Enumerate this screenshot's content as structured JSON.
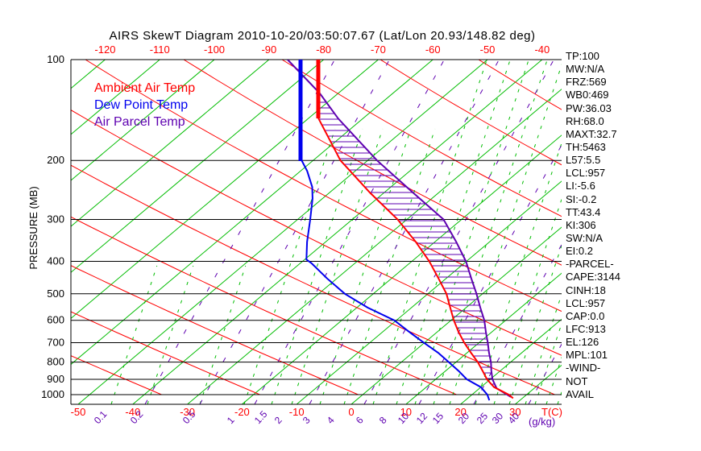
{
  "title": "AIRS SkewT Diagram 2010-10-20/03:50:07.67 (Lat/Lon 20.93/148.82 deg)",
  "colors": {
    "ambient": "#ff0000",
    "dewpoint": "#0000ee",
    "parcel": "#5e00b0",
    "isotherm_green": "#00bc00",
    "frame_black": "#000000",
    "background": "#ffffff"
  },
  "legend": {
    "ambient_label": "Ambient Air Temp",
    "dewpoint_label": "Dew Point Temp",
    "parcel_label": "Air Parcel Temp"
  },
  "axes": {
    "pressure_axis_label": "PRESSURE (MB)",
    "pressure_ticks": [
      100,
      200,
      300,
      400,
      500,
      600,
      700,
      800,
      900,
      1000
    ],
    "top_temp_ticks": [
      -120,
      -110,
      -100,
      -90,
      -80,
      -70,
      -60,
      -50,
      -40
    ],
    "bottom_temp_ticks": [
      -50,
      -40,
      -30,
      -20,
      -10,
      0,
      10,
      20,
      30
    ],
    "temp_unit_label": "T(C)",
    "mixing_unit_label": "(g/kg)",
    "mixing_ratio_ticks": [
      0.1,
      0.2,
      0.5,
      1,
      1.5,
      2,
      3,
      4,
      6,
      8,
      10,
      12,
      15,
      20,
      25,
      30,
      40
    ]
  },
  "stats": [
    "TP:100",
    "MW:N/A",
    "FRZ:569",
    "WB0:469",
    "PW:36.03",
    "RH:68.0",
    "MAXT:32.7",
    "TH:5463",
    "L57:5.5",
    "LCL:957",
    "LI:-5.6",
    "SI:-0.2",
    "TT:43.4",
    "KI:306",
    "SW:N/A",
    "EI:0.2",
    "-PARCEL-",
    "CAPE:3144",
    "CINH:18",
    "LCL:957",
    "CAP:0.0",
    "LFC:913",
    "EL:126",
    "MPL:101",
    "-WIND-",
    "NOT",
    "AVAIL"
  ],
  "chart_data": {
    "type": "line",
    "subtype": "skewt-logp",
    "title": "AIRS SkewT Diagram 2010-10-20/03:50:07.67 (Lat/Lon 20.93/148.82 deg)",
    "xlabel": "T(C)",
    "ylabel": "PRESSURE (MB)",
    "pressure_range": [
      100,
      1050
    ],
    "bottom_temp_range": [
      -50,
      38
    ],
    "grid": "skewt (isotherms, dry adiabats, moist adiabats, mixing-ratio lines)",
    "legend_position": "upper-left inside plot",
    "cape_hatch_between": [
      "Ambient Air Temp",
      "Air Parcel Temp"
    ],
    "series": [
      {
        "name": "Ambient Air Temp",
        "color_key": "ambient",
        "points_p_t": [
          [
            100,
            -80.9
          ],
          [
            150,
            -68.1
          ],
          [
            200,
            -55.0
          ],
          [
            250,
            -42.5
          ],
          [
            300,
            -31.7
          ],
          [
            350,
            -23.5
          ],
          [
            400,
            -16.8
          ],
          [
            450,
            -11.4
          ],
          [
            500,
            -6.6
          ],
          [
            550,
            -2.9
          ],
          [
            600,
            0.5
          ],
          [
            650,
            3.9
          ],
          [
            700,
            7.3
          ],
          [
            750,
            10.7
          ],
          [
            800,
            14.0
          ],
          [
            850,
            16.8
          ],
          [
            900,
            19.4
          ],
          [
            950,
            22.4
          ],
          [
            1000,
            26.7
          ],
          [
            1025,
            28.3
          ]
        ]
      },
      {
        "name": "Dew Point Temp",
        "color_key": "dewpoint",
        "points_p_t": [
          [
            100,
            -84.2
          ],
          [
            200,
            -62.1
          ],
          [
            215,
            -58.8
          ],
          [
            240,
            -54.4
          ],
          [
            260,
            -51.8
          ],
          [
            300,
            -47.7
          ],
          [
            350,
            -43.4
          ],
          [
            395,
            -39.7
          ],
          [
            405,
            -38.0
          ],
          [
            450,
            -31.8
          ],
          [
            500,
            -25.2
          ],
          [
            550,
            -18.0
          ],
          [
            600,
            -10.4
          ],
          [
            650,
            -5.1
          ],
          [
            700,
            -0.1
          ],
          [
            750,
            4.7
          ],
          [
            800,
            8.7
          ],
          [
            850,
            12.4
          ],
          [
            900,
            15.7
          ],
          [
            950,
            20.0
          ],
          [
            1000,
            22.8
          ],
          [
            1040,
            24.4
          ]
        ]
      },
      {
        "name": "Air Parcel Temp",
        "color_key": "parcel",
        "points_p_t": [
          [
            100,
            -86.6
          ],
          [
            126,
            -73.4
          ],
          [
            150,
            -64.5
          ],
          [
            200,
            -48.3
          ],
          [
            250,
            -34.6
          ],
          [
            300,
            -23.3
          ],
          [
            350,
            -16.1
          ],
          [
            400,
            -10.1
          ],
          [
            450,
            -5.4
          ],
          [
            500,
            -1.1
          ],
          [
            550,
            2.6
          ],
          [
            600,
            6.1
          ],
          [
            650,
            8.9
          ],
          [
            700,
            11.6
          ],
          [
            750,
            14.0
          ],
          [
            800,
            16.4
          ],
          [
            850,
            18.4
          ],
          [
            900,
            20.4
          ],
          [
            957,
            23.1
          ],
          [
            1016,
            27.6
          ]
        ]
      }
    ]
  }
}
